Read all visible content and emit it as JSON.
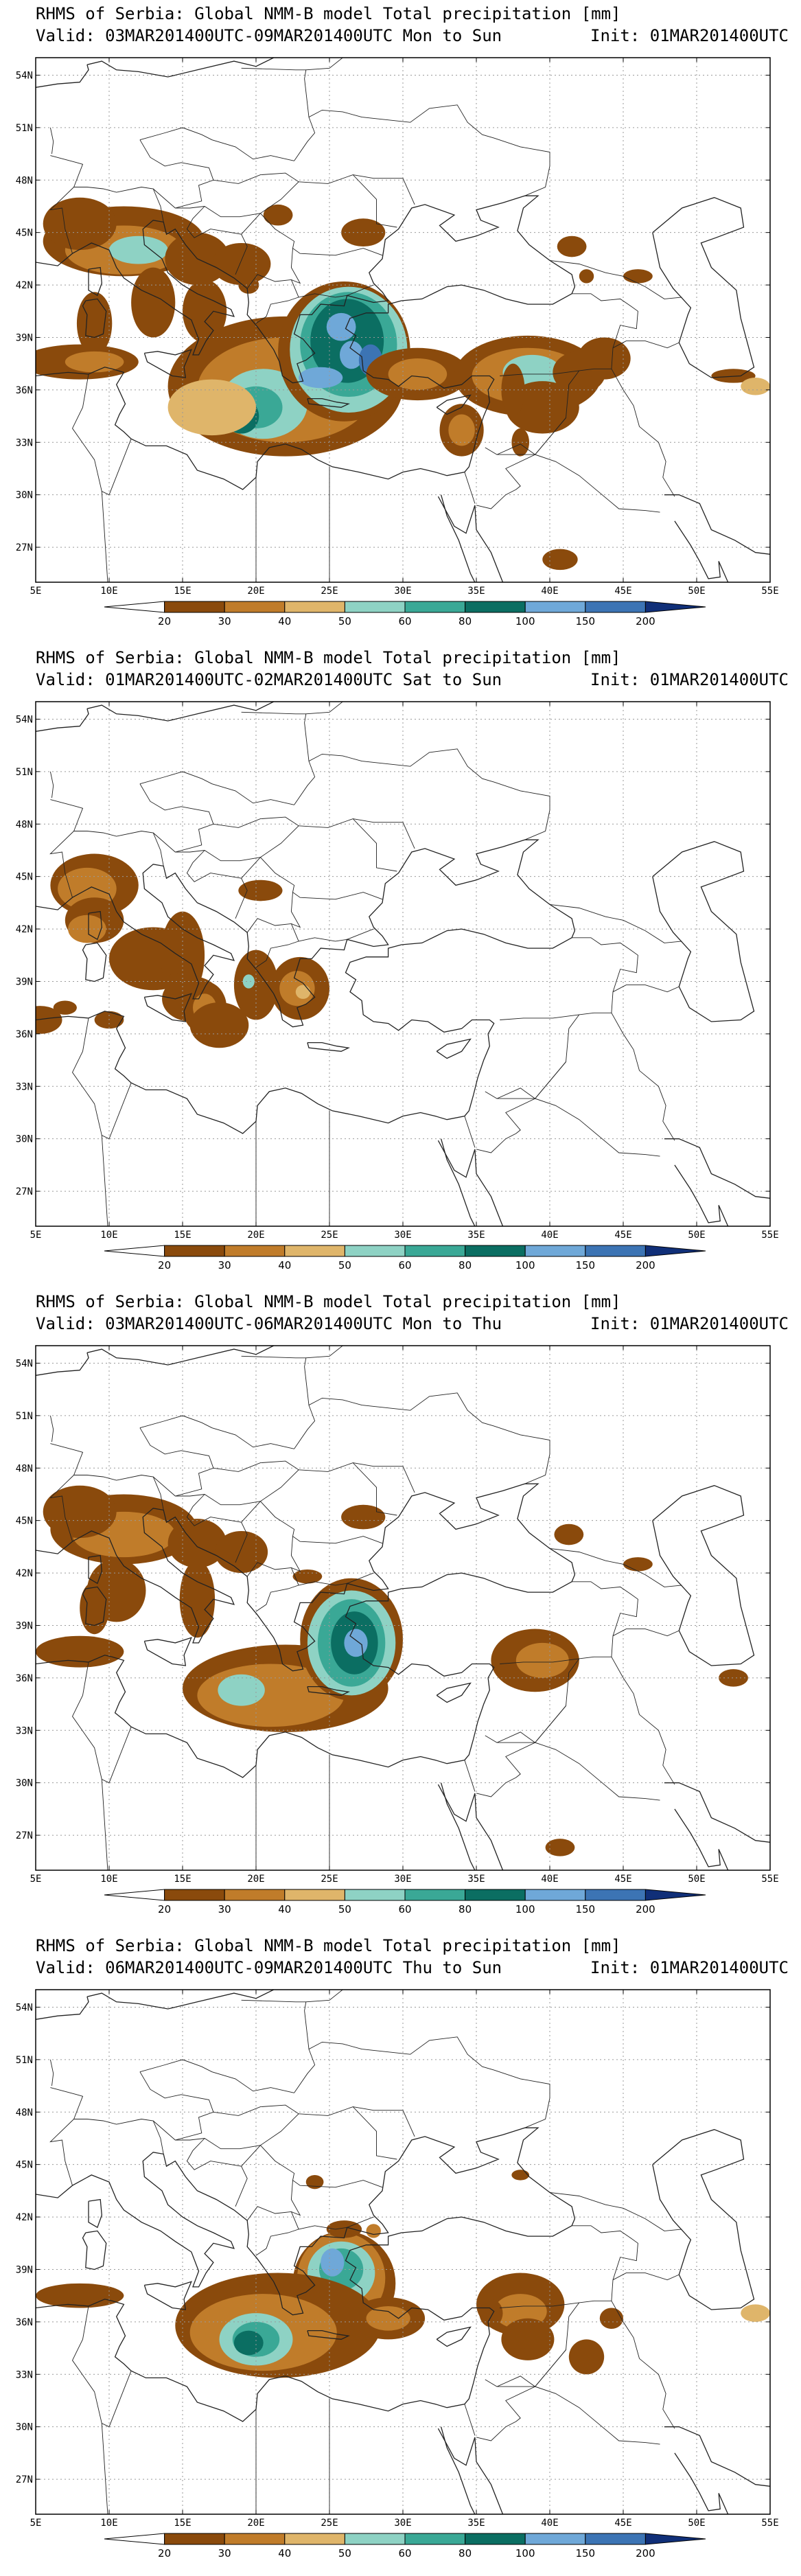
{
  "colors": {
    "levels": [
      "#8a4a0c",
      "#c07c2a",
      "#dfb56a",
      "#8ed2c4",
      "#3aa896",
      "#0b6e62",
      "#6fa8d8",
      "#3c74b4",
      "#102f78"
    ],
    "coast": "#222222",
    "grid": "#999999"
  },
  "legend": {
    "levels": [
      "20",
      "30",
      "40",
      "50",
      "60",
      "80",
      "100",
      "150",
      "200"
    ]
  },
  "axes": {
    "lat_labels": [
      "54N",
      "51N",
      "48N",
      "45N",
      "42N",
      "39N",
      "36N",
      "33N",
      "30N",
      "27N"
    ],
    "lat_values": [
      54,
      51,
      48,
      45,
      42,
      39,
      36,
      33,
      30,
      27
    ],
    "lon_labels": [
      "5E",
      "10E",
      "15E",
      "20E",
      "25E",
      "30E",
      "35E",
      "40E",
      "45E",
      "50E",
      "55E"
    ],
    "lon_values": [
      5,
      10,
      15,
      20,
      25,
      30,
      35,
      40,
      45,
      50,
      55
    ],
    "lon_range": [
      5,
      55
    ],
    "lat_range": [
      25,
      55
    ]
  },
  "panels": [
    {
      "title": "RHMS of Serbia: Global NMM-B model Total precipitation [mm]",
      "valid": "Valid: 03MAR201400UTC-09MAR201400UTC Mon to Sun",
      "init": "Init: 01MAR201400UTC"
    },
    {
      "title": "RHMS of Serbia: Global NMM-B model Total precipitation [mm]",
      "valid": "Valid: 01MAR201400UTC-02MAR201400UTC Sat to Sun",
      "init": "Init: 01MAR201400UTC"
    },
    {
      "title": "RHMS of Serbia: Global NMM-B model Total precipitation [mm]",
      "valid": "Valid: 03MAR201400UTC-06MAR201400UTC Mon to Thu",
      "init": "Init: 01MAR201400UTC"
    },
    {
      "title": "RHMS of Serbia: Global NMM-B model Total precipitation [mm]",
      "valid": "Valid: 06MAR201400UTC-09MAR201400UTC Thu to Sun",
      "init": "Init: 01MAR201400UTC"
    }
  ]
}
